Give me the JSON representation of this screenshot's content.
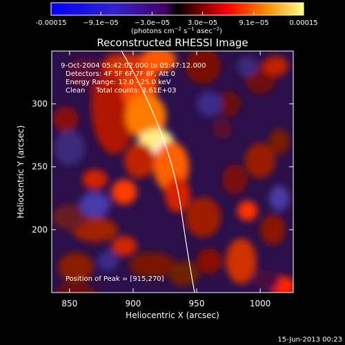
{
  "chart_data": {
    "type": "heatmap",
    "title": "Reconstructed RHESSI Image",
    "xlabel": "Heliocentric X (arcsec)",
    "ylabel": "Heliocentric Y (arcsec)",
    "xlim": [
      836,
      1026
    ],
    "ylim": [
      150,
      342
    ],
    "x_ticks": [
      850,
      900,
      950,
      1000
    ],
    "y_ticks": [
      200,
      250,
      300
    ],
    "colorbar": {
      "min": -0.00015,
      "max": 0.00015,
      "tick_values": [
        -0.00015,
        -9.1e-05,
        -3e-05,
        3e-05,
        9.1e-05,
        0.00015
      ],
      "tick_labels": [
        "-0.00015",
        "−9.1e−05",
        "−3.0e−05",
        "3.0e−05",
        "9.1e−05",
        "0.00015"
      ],
      "unit_prefix": "(photons cm",
      "unit_exp1": "−2",
      "unit_mid": " s",
      "unit_exp2": "−1",
      "unit_mid2": " asec",
      "unit_exp3": "−2",
      "unit_suffix": ")"
    },
    "annotations": {
      "time_range": "9-Oct-2004 05:42:02.000 to 05:47:12.000",
      "detectors": "Detectors: 4F 5F 6F 7F 8F, Att 0",
      "energy_range": "Energy Range: 12.0 - 25.0 keV",
      "method": "Clean     Total counts: 3.61E+03",
      "peak": "Position of Peak = [915,270]"
    },
    "peak_position": [
      915,
      270
    ],
    "footer_date": "15-Jun-2013 00:23",
    "colormap": "red-temperature"
  }
}
